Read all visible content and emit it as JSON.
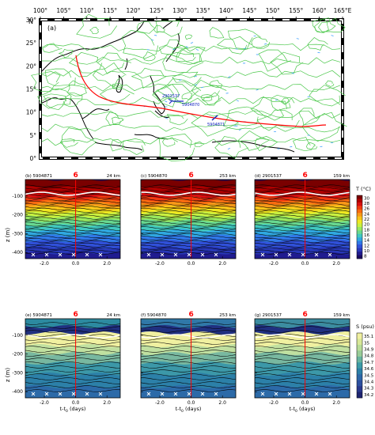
{
  "map": {
    "panel_label": "(a)",
    "lon_ticks": [
      "100°",
      "105°",
      "110°",
      "115°",
      "120°",
      "125°",
      "130°",
      "135°",
      "140°",
      "145°",
      "150°",
      "155°",
      "160°",
      "165°E"
    ],
    "lat_ticks": [
      "30°",
      "25°",
      "20°",
      "15°",
      "10°",
      "5°",
      "0°"
    ],
    "lat_unit": "N",
    "float_labels": [
      "2901537",
      "5904870",
      "5904871"
    ]
  },
  "panels": [
    {
      "label": "(b) 5904871",
      "dist": "24 km"
    },
    {
      "label": "(c) 5904870",
      "dist": "253 km"
    },
    {
      "label": "(d) 2901537",
      "dist": "159 km"
    },
    {
      "label": "(e) 5904871",
      "dist": "24 km"
    },
    {
      "label": "(f) 5904870",
      "dist": "253 km"
    },
    {
      "label": "(g) 2901537",
      "dist": "159 km"
    }
  ],
  "axes": {
    "ylabel": "z (m)",
    "xlabel": "t-t",
    "xlabel_sub": "0",
    "xlabel_units": "(days)",
    "yticks": [
      "-100",
      "-200",
      "-300",
      "-400"
    ],
    "xticks": [
      "-2.0",
      "0.0",
      "2.0"
    ],
    "typhoon_symbol": "6"
  },
  "colorbars": [
    {
      "title": "T (°C)",
      "labels": [
        "30",
        "28",
        "26",
        "24",
        "22",
        "20",
        "18",
        "16",
        "14",
        "12",
        "10",
        "8"
      ],
      "colors": [
        "#7a0000",
        "#b00000",
        "#d81010",
        "#f03a10",
        "#f86a10",
        "#f89a18",
        "#f8c418",
        "#f0e820",
        "#c8f040",
        "#98e860",
        "#68d890",
        "#40c8c0",
        "#30a8e0",
        "#3078e8",
        "#3050d8",
        "#2838b8",
        "#201c90",
        "#1a0a60"
      ]
    },
    {
      "title": "S (psu)",
      "labels": [
        "35.1",
        "35",
        "34.9",
        "34.8",
        "34.7",
        "34.6",
        "34.5",
        "34.4",
        "34.3",
        "34.2"
      ],
      "colors": [
        "#f0f0a0",
        "#d8e898",
        "#b8dc98",
        "#98cc98",
        "#68b4a0",
        "#3c9ca8",
        "#2c80a8",
        "#2c68a8",
        "#2c50a0",
        "#28388c",
        "#1e2470"
      ]
    }
  ]
}
